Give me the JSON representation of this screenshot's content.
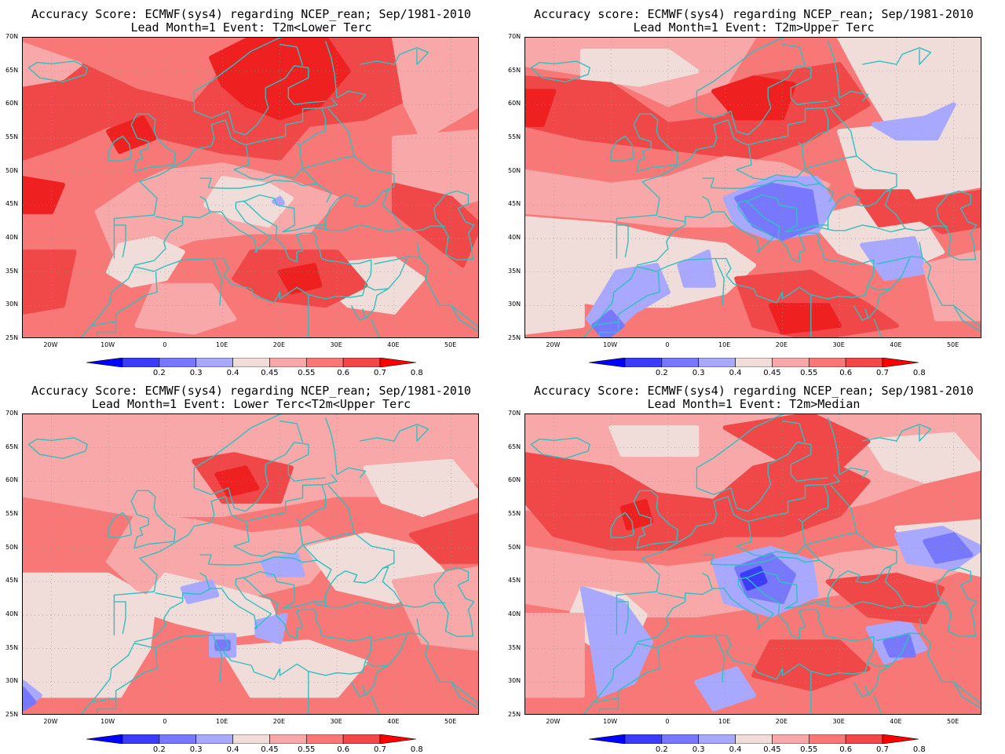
{
  "panels": [
    {
      "title_line1": "Accuracy Score: ECMWF(sys4) regarding NCEP_rean; Sep/1981-2010",
      "title_line2": "Lead Month=1 Event: T2m<Lower Terc",
      "pattern": "lower_terc"
    },
    {
      "title_line1": "Accuracy score: ECMWF(sys4) regarding NCEP_rean; Sep/1981-2010",
      "title_line2": "Lead Month=1 Event: T2m>Upper Terc",
      "pattern": "upper_terc"
    },
    {
      "title_line1": "Accuracy Score: ECMWF(sys4) regarding NCEP_rean; Sep/1981-2010",
      "title_line2": "Lead Month=1 Event: Lower Terc<T2m<Upper Terc",
      "pattern": "middle_terc"
    },
    {
      "title_line1": "Accuracy Score: ECMWF(sys4) regarding NCEP_rean; Sep/1981-2010",
      "title_line2": "Lead Month=1 Event: T2m>Median",
      "pattern": "median"
    }
  ],
  "lat_ticks": [
    "70N",
    "65N",
    "60N",
    "55N",
    "50N",
    "45N",
    "40N",
    "35N",
    "30N",
    "25N"
  ],
  "lon_ticks": [
    "20W",
    "10W",
    "0",
    "10E",
    "20E",
    "30E",
    "40E",
    "50E"
  ],
  "colorbar": {
    "labels": [
      "0.2",
      "0.3",
      "0.4",
      "0.45",
      "0.55",
      "0.6",
      "0.7",
      "0.8"
    ],
    "colors": [
      "#0000ff",
      "#3c3cff",
      "#7878ff",
      "#a8a8ff",
      "#f0dcd8",
      "#f8a8a8",
      "#f87878",
      "#f04848",
      "#ff0000"
    ]
  },
  "map_colors": {
    "background_red": "#f87878",
    "deep_red": "#f04848",
    "darkest_red": "#ee2020",
    "pink": "#f8a8a8",
    "neutral": "#f0dcd8",
    "light_blue": "#a8a8ff",
    "mid_blue": "#7878ff",
    "deep_blue": "#3c3cff",
    "coastline": "#30c0c0",
    "grid": "#999999"
  }
}
